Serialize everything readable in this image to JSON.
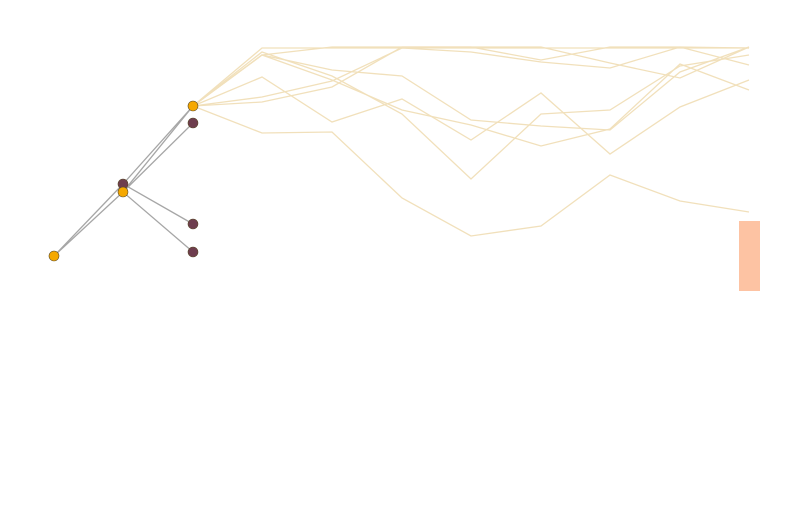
{
  "colors": {
    "background": "#ffffff",
    "edge": "#a6a6a6",
    "path_line": "#f1e0bb",
    "node_highlight": "#f5a800",
    "node_leaf": "#6e3d4e",
    "side_bar": "#fdc3a3"
  },
  "tree": {
    "nodes": [
      {
        "id": "root",
        "kind": "highlight"
      },
      {
        "id": "mid-a",
        "kind": "leaf"
      },
      {
        "id": "mid-b",
        "kind": "highlight"
      },
      {
        "id": "branch",
        "kind": "highlight"
      },
      {
        "id": "leaf-1",
        "kind": "leaf"
      },
      {
        "id": "leaf-2",
        "kind": "leaf"
      },
      {
        "id": "leaf-3",
        "kind": "leaf"
      }
    ],
    "edges": [
      [
        "root",
        "mid-a"
      ],
      [
        "root",
        "mid-b"
      ],
      [
        "mid-a",
        "branch"
      ],
      [
        "mid-b",
        "branch"
      ],
      [
        "mid-b",
        "leaf-1"
      ],
      [
        "mid-a",
        "leaf-2"
      ],
      [
        "mid-b",
        "leaf-3"
      ]
    ]
  },
  "trajectories": {
    "count": 9
  }
}
